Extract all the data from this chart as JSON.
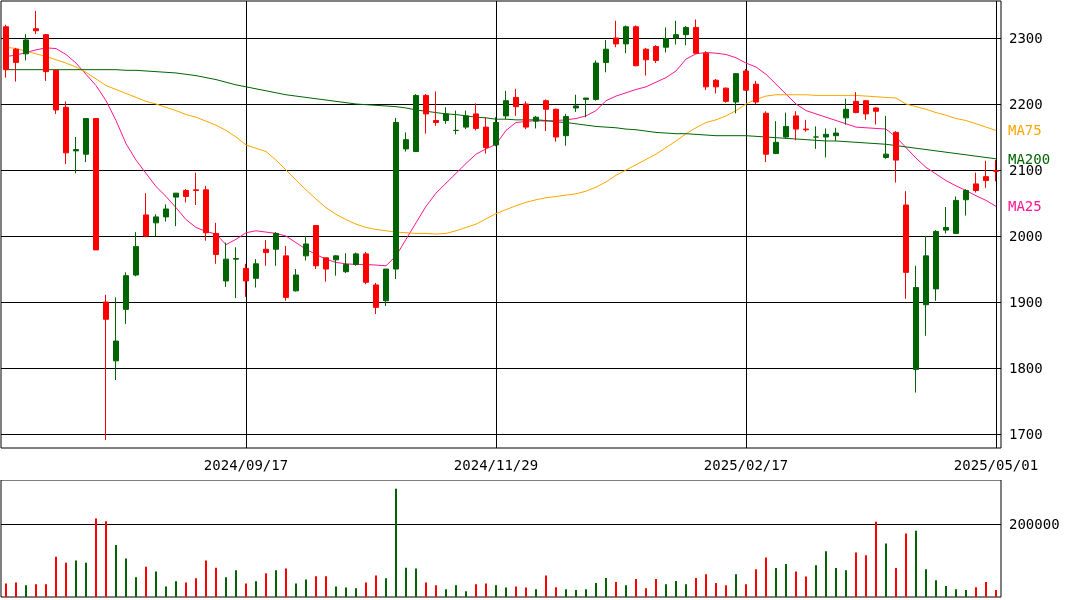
{
  "chart_data": [
    {
      "type": "candlestick",
      "categories": [
        null,
        null,
        null,
        null,
        null,
        null,
        null,
        null,
        null,
        null,
        null,
        null,
        null,
        null,
        null,
        null,
        null,
        null,
        null,
        null,
        null,
        null,
        null,
        null,
        "2024/09/17",
        null,
        null,
        null,
        null,
        null,
        null,
        null,
        null,
        null,
        null,
        null,
        null,
        null,
        null,
        null,
        null,
        null,
        null,
        null,
        null,
        null,
        null,
        null,
        null,
        "2024/11/29",
        null,
        null,
        null,
        null,
        null,
        null,
        null,
        null,
        null,
        null,
        null,
        null,
        null,
        null,
        null,
        null,
        null,
        null,
        null,
        null,
        null,
        null,
        null,
        null,
        "2025/02/17",
        null,
        null,
        null,
        null,
        null,
        null,
        null,
        null,
        null,
        null,
        null,
        null,
        null,
        null,
        null,
        null,
        null,
        null,
        null,
        null,
        null,
        null,
        null,
        null,
        "2025/05/01"
      ],
      "series": [
        {
          "ohlc": [
            [
              2317,
              2320,
              2240,
              2252
            ],
            [
              2283,
              2285,
              2234,
              2263
            ],
            [
              2276,
              2306,
              2266,
              2297
            ],
            [
              2314,
              2341,
              2306,
              2311
            ],
            [
              2305,
              2306,
              2235,
              2249
            ],
            [
              2251,
              2252,
              2185,
              2191
            ],
            [
              2195,
              2204,
              2109,
              2126
            ],
            [
              2129,
              2150,
              2095,
              2131
            ],
            [
              2124,
              2178,
              2112,
              2178
            ],
            [
              2178,
              2178,
              1979,
              1979
            ],
            [
              1900,
              1911,
              1691,
              1874
            ],
            [
              1811,
              1907,
              1782,
              1841
            ],
            [
              1889,
              1945,
              1867,
              1940
            ],
            [
              1941,
              2006,
              1939,
              1984
            ],
            [
              2032,
              2065,
              1998,
              2000
            ],
            [
              2020,
              2033,
              2000,
              2029
            ],
            [
              2029,
              2048,
              2022,
              2041
            ],
            [
              2059,
              2065,
              2015,
              2065
            ],
            [
              2069,
              2071,
              2051,
              2060
            ],
            [
              2070,
              2096,
              2047,
              2069
            ],
            [
              2070,
              2076,
              1993,
              2005
            ],
            [
              2004,
              2020,
              1958,
              1972
            ],
            [
              1932,
              1990,
              1923,
              1965
            ],
            [
              1965,
              1983,
              1906,
              1966
            ],
            [
              1951,
              1958,
              1908,
              1932
            ],
            [
              1936,
              1965,
              1922,
              1958
            ],
            [
              1980,
              1994,
              1955,
              1975
            ],
            [
              1980,
              2006,
              1955,
              2004
            ],
            [
              1970,
              1985,
              1902,
              1907
            ],
            [
              1917,
              1950,
              1916,
              1941
            ],
            [
              1970,
              2000,
              1963,
              1988
            ],
            [
              2016,
              2016,
              1950,
              1955
            ],
            [
              1967,
              1967,
              1931,
              1950
            ],
            [
              1964,
              1971,
              1940,
              1970
            ],
            [
              1946,
              1974,
              1944,
              1957
            ],
            [
              1957,
              1975,
              1955,
              1973
            ],
            [
              1973,
              1976,
              1927,
              1930
            ],
            [
              1926,
              1929,
              1882,
              1892
            ],
            [
              1902,
              1950,
              1894,
              1950
            ],
            [
              1950,
              2179,
              1935,
              2172
            ],
            [
              2132,
              2157,
              2128,
              2146
            ],
            [
              2128,
              2215,
              2128,
              2213
            ],
            [
              2213,
              2215,
              2155,
              2185
            ],
            [
              2175,
              2219,
              2167,
              2172
            ],
            [
              2175,
              2195,
              2170,
              2185
            ],
            [
              2160,
              2190,
              2154,
              2160
            ],
            [
              2165,
              2190,
              2162,
              2182
            ],
            [
              2185,
              2201,
              2160,
              2163
            ],
            [
              2165,
              2180,
              2125,
              2134
            ],
            [
              2138,
              2180,
              2136,
              2172
            ],
            [
              2182,
              2220,
              2177,
              2205
            ],
            [
              2210,
              2223,
              2182,
              2196
            ],
            [
              2200,
              2204,
              2162,
              2165
            ],
            [
              2174,
              2182,
              2163,
              2180
            ],
            [
              2205,
              2207,
              2159,
              2192
            ],
            [
              2192,
              2193,
              2143,
              2150
            ],
            [
              2152,
              2185,
              2137,
              2181
            ],
            [
              2194,
              2214,
              2188,
              2197
            ],
            [
              2207,
              2209,
              2180,
              2209
            ],
            [
              2207,
              2266,
              2205,
              2262
            ],
            [
              2263,
              2297,
              2248,
              2283
            ],
            [
              2300,
              2326,
              2286,
              2291
            ],
            [
              2291,
              2319,
              2277,
              2317
            ],
            [
              2317,
              2319,
              2257,
              2258
            ],
            [
              2283,
              2285,
              2243,
              2267
            ],
            [
              2287,
              2289,
              2262,
              2266
            ],
            [
              2286,
              2316,
              2278,
              2299
            ],
            [
              2300,
              2326,
              2290,
              2305
            ],
            [
              2305,
              2318,
              2289,
              2316
            ],
            [
              2316,
              2328,
              2276,
              2277
            ],
            [
              2277,
              2280,
              2221,
              2226
            ],
            [
              2236,
              2238,
              2216,
              2226
            ],
            [
              2224,
              2225,
              2202,
              2204
            ],
            [
              2203,
              2247,
              2186,
              2246
            ],
            [
              2250,
              2253,
              2220,
              2221
            ],
            [
              2230,
              2235,
              2200,
              2203
            ],
            [
              2186,
              2189,
              2112,
              2124
            ],
            [
              2125,
              2174,
              2124,
              2142
            ],
            [
              2150,
              2187,
              2148,
              2166
            ],
            [
              2182,
              2189,
              2145,
              2162
            ],
            [
              2162,
              2176,
              2158,
              2161
            ],
            [
              2150,
              2166,
              2132,
              2150
            ],
            [
              2150,
              2163,
              2119,
              2154
            ],
            [
              2152,
              2164,
              2144,
              2156
            ],
            [
              2179,
              2208,
              2169,
              2192
            ],
            [
              2204,
              2218,
              2186,
              2187
            ],
            [
              2205,
              2206,
              2176,
              2185
            ],
            [
              2194,
              2195,
              2169,
              2189
            ],
            [
              2119,
              2182,
              2117,
              2124
            ],
            [
              2157,
              2159,
              2081,
              2115
            ],
            [
              2047,
              2068,
              1905,
              1945
            ],
            [
              1798,
              1955,
              1763,
              1922
            ],
            [
              1896,
              2000,
              1849,
              1970
            ],
            [
              1920,
              2009,
              1902,
              2007
            ],
            [
              2009,
              2044,
              2004,
              2013
            ],
            [
              2004,
              2060,
              2003,
              2054
            ],
            [
              2055,
              2071,
              2031,
              2069
            ],
            [
              2079,
              2096,
              2066,
              2069
            ],
            [
              2090,
              2114,
              2073,
              2084
            ],
            [
              2099,
              2115,
              2083,
              2098
            ]
          ],
          "colors": [
            "#ff0000",
            "#ff0000",
            "#006400",
            "#ff0000",
            "#ff0000",
            "#ff0000",
            "#ff0000",
            "#006400",
            "#006400",
            "#ff0000",
            "#ff0000",
            "#006400",
            "#006400",
            "#006400",
            "#ff0000",
            "#006400",
            "#006400",
            "#006400",
            "#ff0000",
            "#ff0000",
            "#ff0000",
            "#ff0000",
            "#006400",
            "#006400",
            "#ff0000",
            "#006400",
            "#ff0000",
            "#006400",
            "#ff0000",
            "#006400",
            "#006400",
            "#ff0000",
            "#ff0000",
            "#006400",
            "#006400",
            "#006400",
            "#ff0000",
            "#ff0000",
            "#006400",
            "#006400",
            "#006400",
            "#006400",
            "#ff0000",
            "#ff0000",
            "#006400",
            "#006400",
            "#006400",
            "#ff0000",
            "#ff0000",
            "#006400",
            "#006400",
            "#ff0000",
            "#ff0000",
            "#006400",
            "#ff0000",
            "#ff0000",
            "#006400",
            "#006400",
            "#006400",
            "#006400",
            "#006400",
            "#ff0000",
            "#006400",
            "#ff0000",
            "#ff0000",
            "#ff0000",
            "#006400",
            "#006400",
            "#006400",
            "#ff0000",
            "#ff0000",
            "#ff0000",
            "#ff0000",
            "#006400",
            "#ff0000",
            "#ff0000",
            "#ff0000",
            "#006400",
            "#006400",
            "#ff0000",
            "#ff0000",
            "#006400",
            "#006400",
            "#006400",
            "#006400",
            "#ff0000",
            "#ff0000",
            "#ff0000",
            "#006400",
            "#ff0000",
            "#ff0000",
            "#006400",
            "#006400",
            "#006400",
            "#006400",
            "#006400",
            "#006400",
            "#ff0000",
            "#ff0000",
            "#ff0000"
          ]
        },
        {
          "type": "line",
          "name": "MA25",
          "color": "#ff1493",
          "values": [
            2272,
            2274,
            2278,
            2282,
            2285,
            2284,
            2275,
            2262,
            2245,
            2228,
            2205,
            2175,
            2140,
            2115,
            2095,
            2075,
            2060,
            2043,
            2025,
            2013,
            2007,
            2003,
            1987,
            1995,
            2005,
            2008,
            2006,
            2004,
            2000,
            1990,
            1980,
            1972,
            1965,
            1960,
            1958,
            1957,
            1957,
            1956,
            1955,
            1970,
            1995,
            2020,
            2045,
            2065,
            2080,
            2095,
            2110,
            2124,
            2132,
            2139,
            2160,
            2172,
            null,
            2175,
            2174,
            2175,
            2176,
            2178,
            2182,
            2190,
            2205,
            2212,
            2217,
            2222,
            2226,
            2233,
            2240,
            2250,
            2268,
            2276,
            2278,
            2277,
            2275,
            2270,
            2262,
            2256,
            2245,
            2230,
            2215,
            2200,
            2190,
            2185,
            2180,
            2175,
            2170,
            2165,
            2164,
            2163,
            2162,
            2150,
            2134,
            2118,
            2104,
            2094,
            2084,
            2076,
            2069,
            2061,
            2054,
            2045
          ]
        },
        {
          "type": "line",
          "name": "MA75",
          "color": "#ffa500",
          "values": [
            2286,
            2284,
            2280,
            2276,
            2272,
            2267,
            2262,
            2256,
            2248,
            2238,
            2228,
            2222,
            2216,
            2210,
            2204,
            2200,
            2195,
            2190,
            2184,
            2180,
            2174,
            2168,
            2160,
            2150,
            2138,
            2133,
            2128,
            2115,
            2100,
            2085,
            2070,
            2056,
            2043,
            2033,
            2025,
            2018,
            2013,
            2010,
            2008,
            2006,
            2005,
            2004,
            2004,
            2003,
            2004,
            2008,
            2013,
            2018,
            2026,
            2034,
            2040,
            2046,
            2051,
            2055,
            2058,
            2060,
            2062,
            2064,
            2068,
            2074,
            2082,
            2092,
            2100,
            2108,
            2116,
            2124,
            2134,
            2144,
            2155,
            2164,
            2172,
            2176,
            2182,
            2190,
            2200,
            2207,
            2212,
            2214,
            2214,
            2214,
            2214,
            2213,
            2213,
            2213,
            2213,
            2213,
            2212,
            2211,
            2210,
            2209,
            2200,
            2196,
            2192,
            2187,
            2183,
            2178,
            2175,
            2170,
            2165,
            2160
          ]
        },
        {
          "type": "line",
          "name": "MA200",
          "color": "#006400",
          "values": [
            2252,
            2252,
            2252,
            2252,
            2252,
            2252,
            2252,
            2252,
            2252,
            2252,
            2252,
            2252,
            2251,
            2251,
            2250,
            2249,
            2248,
            2247,
            2245,
            2243,
            2240,
            2237,
            2233,
            2229,
            2226,
            2223,
            2220,
            2217,
            2214,
            2212,
            2210,
            2208,
            2206,
            2204,
            2202,
            2200,
            2199,
            2198,
            2197,
            2196,
            2194,
            2191,
            2189,
            2187,
            2185,
            2184,
            2182,
            2180,
            2179,
            2177,
            2177,
            2176,
            2176,
            2176,
            2175,
            2173,
            2172,
            2170,
            2168,
            2166,
            2165,
            2164,
            2162,
            2161,
            2159,
            2157,
            2156,
            2155,
            2155,
            2154,
            2153,
            2152,
            2152,
            2152,
            2152,
            2151,
            2150,
            2149,
            2148,
            2147,
            2146,
            2145,
            2144,
            2144,
            2143,
            2142,
            2141,
            2140,
            2139,
            2137,
            2135,
            2133,
            2131,
            2129,
            2127,
            2125,
            2123,
            2121,
            2119,
            2117
          ]
        }
      ],
      "ylim": [
        1679,
        2356
      ],
      "yticks": [
        1700,
        1800,
        1900,
        2000,
        2100,
        2200,
        2300
      ],
      "grid": true,
      "marker": "none",
      "line_style": "solid"
    },
    {
      "type": "bar",
      "categories": [
        null,
        null,
        null,
        null,
        null,
        null,
        null,
        null,
        null,
        null,
        null,
        null,
        null,
        null,
        null,
        null,
        null,
        null,
        null,
        null,
        null,
        null,
        null,
        null,
        null,
        null,
        null,
        null,
        null,
        null,
        null,
        null,
        null,
        null,
        null,
        null,
        null,
        null,
        null,
        null,
        null,
        null,
        null,
        null,
        null,
        null,
        null,
        null,
        null,
        null,
        null,
        null,
        null,
        null,
        null,
        null,
        null,
        null,
        null,
        null,
        null,
        null,
        null,
        null,
        null,
        null,
        null,
        null,
        null,
        null,
        null,
        null,
        null,
        null,
        null,
        null,
        null,
        null,
        null,
        null,
        null,
        null,
        null,
        null,
        null,
        null,
        null,
        null,
        null,
        null,
        null,
        null,
        null,
        null,
        null,
        null,
        null,
        null,
        null,
        null
      ],
      "values": [
        37000,
        40000,
        32000,
        35000,
        35000,
        110000,
        94000,
        100000,
        94000,
        215000,
        207000,
        142000,
        105000,
        54000,
        83000,
        70000,
        29000,
        43000,
        40000,
        51000,
        100000,
        80000,
        54000,
        73000,
        37000,
        43000,
        65000,
        73000,
        78000,
        37000,
        48000,
        57000,
        57000,
        29000,
        26000,
        24000,
        40000,
        59000,
        51000,
        296000,
        80000,
        78000,
        40000,
        32000,
        21000,
        32000,
        16000,
        35000,
        37000,
        32000,
        26000,
        29000,
        26000,
        21000,
        59000,
        27000,
        21000,
        19000,
        21000,
        38000,
        52000,
        41000,
        32000,
        49000,
        24000,
        49000,
        35000,
        44000,
        35000,
        52000,
        62000,
        38000,
        32000,
        62000,
        35000,
        76000,
        108000,
        79000,
        90000,
        70000,
        56000,
        87000,
        125000,
        79000,
        73000,
        122000,
        114000,
        206000,
        146000,
        79000,
        174000,
        181000,
        76000,
        46000,
        30000,
        21000,
        19000,
        27000,
        41000,
        19000
      ],
      "colors": [
        "#ff0000",
        "#ff0000",
        "#006400",
        "#ff0000",
        "#ff0000",
        "#ff0000",
        "#ff0000",
        "#006400",
        "#006400",
        "#ff0000",
        "#ff0000",
        "#006400",
        "#006400",
        "#006400",
        "#ff0000",
        "#006400",
        "#006400",
        "#006400",
        "#ff0000",
        "#ff0000",
        "#ff0000",
        "#ff0000",
        "#006400",
        "#006400",
        "#ff0000",
        "#006400",
        "#ff0000",
        "#006400",
        "#ff0000",
        "#006400",
        "#006400",
        "#ff0000",
        "#ff0000",
        "#006400",
        "#006400",
        "#006400",
        "#ff0000",
        "#ff0000",
        "#006400",
        "#006400",
        "#006400",
        "#006400",
        "#ff0000",
        "#ff0000",
        "#006400",
        "#006400",
        "#006400",
        "#ff0000",
        "#ff0000",
        "#006400",
        "#006400",
        "#ff0000",
        "#ff0000",
        "#006400",
        "#ff0000",
        "#ff0000",
        "#006400",
        "#006400",
        "#006400",
        "#006400",
        "#006400",
        "#ff0000",
        "#006400",
        "#ff0000",
        "#ff0000",
        "#ff0000",
        "#006400",
        "#006400",
        "#006400",
        "#ff0000",
        "#ff0000",
        "#ff0000",
        "#ff0000",
        "#006400",
        "#ff0000",
        "#ff0000",
        "#ff0000",
        "#006400",
        "#006400",
        "#ff0000",
        "#ff0000",
        "#006400",
        "#006400",
        "#006400",
        "#006400",
        "#ff0000",
        "#ff0000",
        "#ff0000",
        "#006400",
        "#ff0000",
        "#ff0000",
        "#006400",
        "#006400",
        "#006400",
        "#006400",
        "#006400",
        "#006400",
        "#ff0000",
        "#ff0000",
        "#ff0000"
      ],
      "ylim": [
        0,
        320000
      ],
      "yticks": [
        200000
      ],
      "grid": "y",
      "tick_labels": "y"
    }
  ]
}
